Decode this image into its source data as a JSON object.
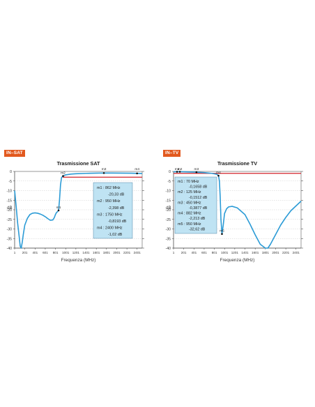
{
  "colors": {
    "tag_bg": "#e2591e",
    "curve": "#2b9bd6",
    "reference_line": "#d2232a",
    "marker_box": "#bfe3f3",
    "marker_box_line": "#2f6c93",
    "axis": "#333333",
    "grid": "#bfbfbf"
  },
  "chart_data": [
    {
      "type": "line",
      "tag": "IN–SAT",
      "title": "Trasmissione SAT",
      "xlabel": "Frequenza (MHz)",
      "ylabel": "dB",
      "xlim": [
        1,
        2500
      ],
      "ylim": [
        -40,
        0
      ],
      "x_ticks": [
        1,
        201,
        401,
        601,
        801,
        1001,
        1201,
        1401,
        1601,
        1801,
        2001,
        2201,
        2401
      ],
      "y_ticks": [
        0,
        -5,
        -10,
        -15,
        -20,
        -25,
        -30,
        -35,
        -40
      ],
      "x_tick_labels": [
        "1",
        "201",
        "401",
        "601",
        "801",
        "1001",
        "1201",
        "1401",
        "1601",
        "1801",
        "2001",
        "2201",
        "2401"
      ],
      "y_tick_labels": [
        "0",
        "-5",
        "-10",
        "-15",
        "-20",
        "-25",
        "-30",
        "-35",
        "-40"
      ],
      "grid": true,
      "reference_line_db": -3,
      "series": [
        {
          "x": [
            1,
            30,
            60,
            90,
            110,
            130,
            150,
            170,
            200,
            250,
            300,
            350,
            400,
            450,
            500,
            550,
            600,
            650,
            700,
            750,
            780,
            800,
            820,
            840,
            862,
            880,
            900,
            920,
            950,
            1000,
            1100,
            1200,
            1400,
            1600,
            1750,
            1900,
            2100,
            2300,
            2400,
            2500
          ],
          "y": [
            -10,
            -18,
            -27,
            -34,
            -39,
            -40,
            -37,
            -33,
            -28,
            -24.5,
            -22.5,
            -21.8,
            -21.6,
            -21.8,
            -22.2,
            -22.8,
            -23.6,
            -24.6,
            -25.5,
            -25.3,
            -24,
            -22.5,
            -21.5,
            -21,
            -20.33,
            -15,
            -7,
            -3.2,
            -2.4,
            -1.8,
            -1.4,
            -1.2,
            -1,
            -0.9,
            -0.82,
            -0.85,
            -0.9,
            -0.95,
            -1.02,
            -1.05
          ]
        }
      ],
      "markers": [
        {
          "label": "m1",
          "x": 862,
          "y": -20.33
        },
        {
          "label": "m2",
          "x": 950,
          "y": -2.398
        },
        {
          "label": "m3",
          "x": 1750,
          "y": -0.8193
        },
        {
          "label": "m4",
          "x": 2400,
          "y": -1.02
        }
      ],
      "marker_table": [
        {
          "line1": "m1 : 862 MHz",
          "line2": "-20,33 dB"
        },
        {
          "line1": "m2 : 950 MHz",
          "line2": "-2,398 dB"
        },
        {
          "line1": "m3 : 1750 MHz",
          "line2": "-0,8193 dB"
        },
        {
          "line1": "m4 : 2400 MHz",
          "line2": "-1,02 dB"
        }
      ]
    },
    {
      "type": "line",
      "tag": "IN–TV",
      "title": "Trasmissione TV",
      "xlabel": "Frequenza (MHz)",
      "ylabel": "dB",
      "xlim": [
        1,
        2500
      ],
      "ylim": [
        -40,
        0
      ],
      "x_ticks": [
        1,
        201,
        401,
        601,
        801,
        1001,
        1201,
        1401,
        1601,
        1801,
        2001,
        2201,
        2401
      ],
      "y_ticks": [
        0,
        -5,
        -10,
        -15,
        -20,
        -25,
        -30,
        -35,
        -40
      ],
      "x_tick_labels": [
        "1",
        "201",
        "401",
        "601",
        "801",
        "1001",
        "1201",
        "1401",
        "1601",
        "1801",
        "2001",
        "2201",
        "2401"
      ],
      "y_tick_labels": [
        "0",
        "-5",
        "-10",
        "-15",
        "-20",
        "-25",
        "-30",
        "-35",
        "-40"
      ],
      "grid": true,
      "reference_line_db": -1,
      "series": [
        {
          "x": [
            1,
            70,
            125,
            200,
            300,
            450,
            600,
            750,
            850,
            882,
            900,
            915,
            930,
            950,
            975,
            1000,
            1040,
            1080,
            1150,
            1250,
            1400,
            1500,
            1600,
            1700,
            1800,
            1850,
            1900,
            2000,
            2100,
            2200,
            2300,
            2400,
            2500
          ],
          "y": [
            -0.2,
            -0.1658,
            -0.1512,
            -0.2,
            -0.3,
            -0.3877,
            -0.6,
            -1,
            -1.5,
            -2.213,
            -5,
            -13,
            -25,
            -32.62,
            -28,
            -22,
            -19.5,
            -18.5,
            -18.2,
            -19,
            -22.5,
            -27.5,
            -33,
            -38,
            -40,
            -40,
            -38,
            -33,
            -28,
            -24,
            -20.5,
            -18,
            -15.5
          ]
        }
      ],
      "markers": [
        {
          "label": "m1",
          "x": 70,
          "y": -0.1658
        },
        {
          "label": "m2",
          "x": 125,
          "y": -0.1512
        },
        {
          "label": "m3",
          "x": 450,
          "y": -0.3877
        },
        {
          "label": "m4",
          "x": 882,
          "y": -2.213
        },
        {
          "label": "m5",
          "x": 950,
          "y": -32.62
        }
      ],
      "marker_table": [
        {
          "line1": "m1 : 70 MHz",
          "line2": "-0,1658 dB"
        },
        {
          "line1": "m2 : 125 MHz",
          "line2": "-0,1512 dB"
        },
        {
          "line1": "m3 : 450 MHz",
          "line2": "-0,3877 dB"
        },
        {
          "line1": "m4 : 882 MHz",
          "line2": "-2,213 dB"
        },
        {
          "line1": "m5 : 950 MHz",
          "line2": "-32,62 dB"
        }
      ]
    }
  ]
}
